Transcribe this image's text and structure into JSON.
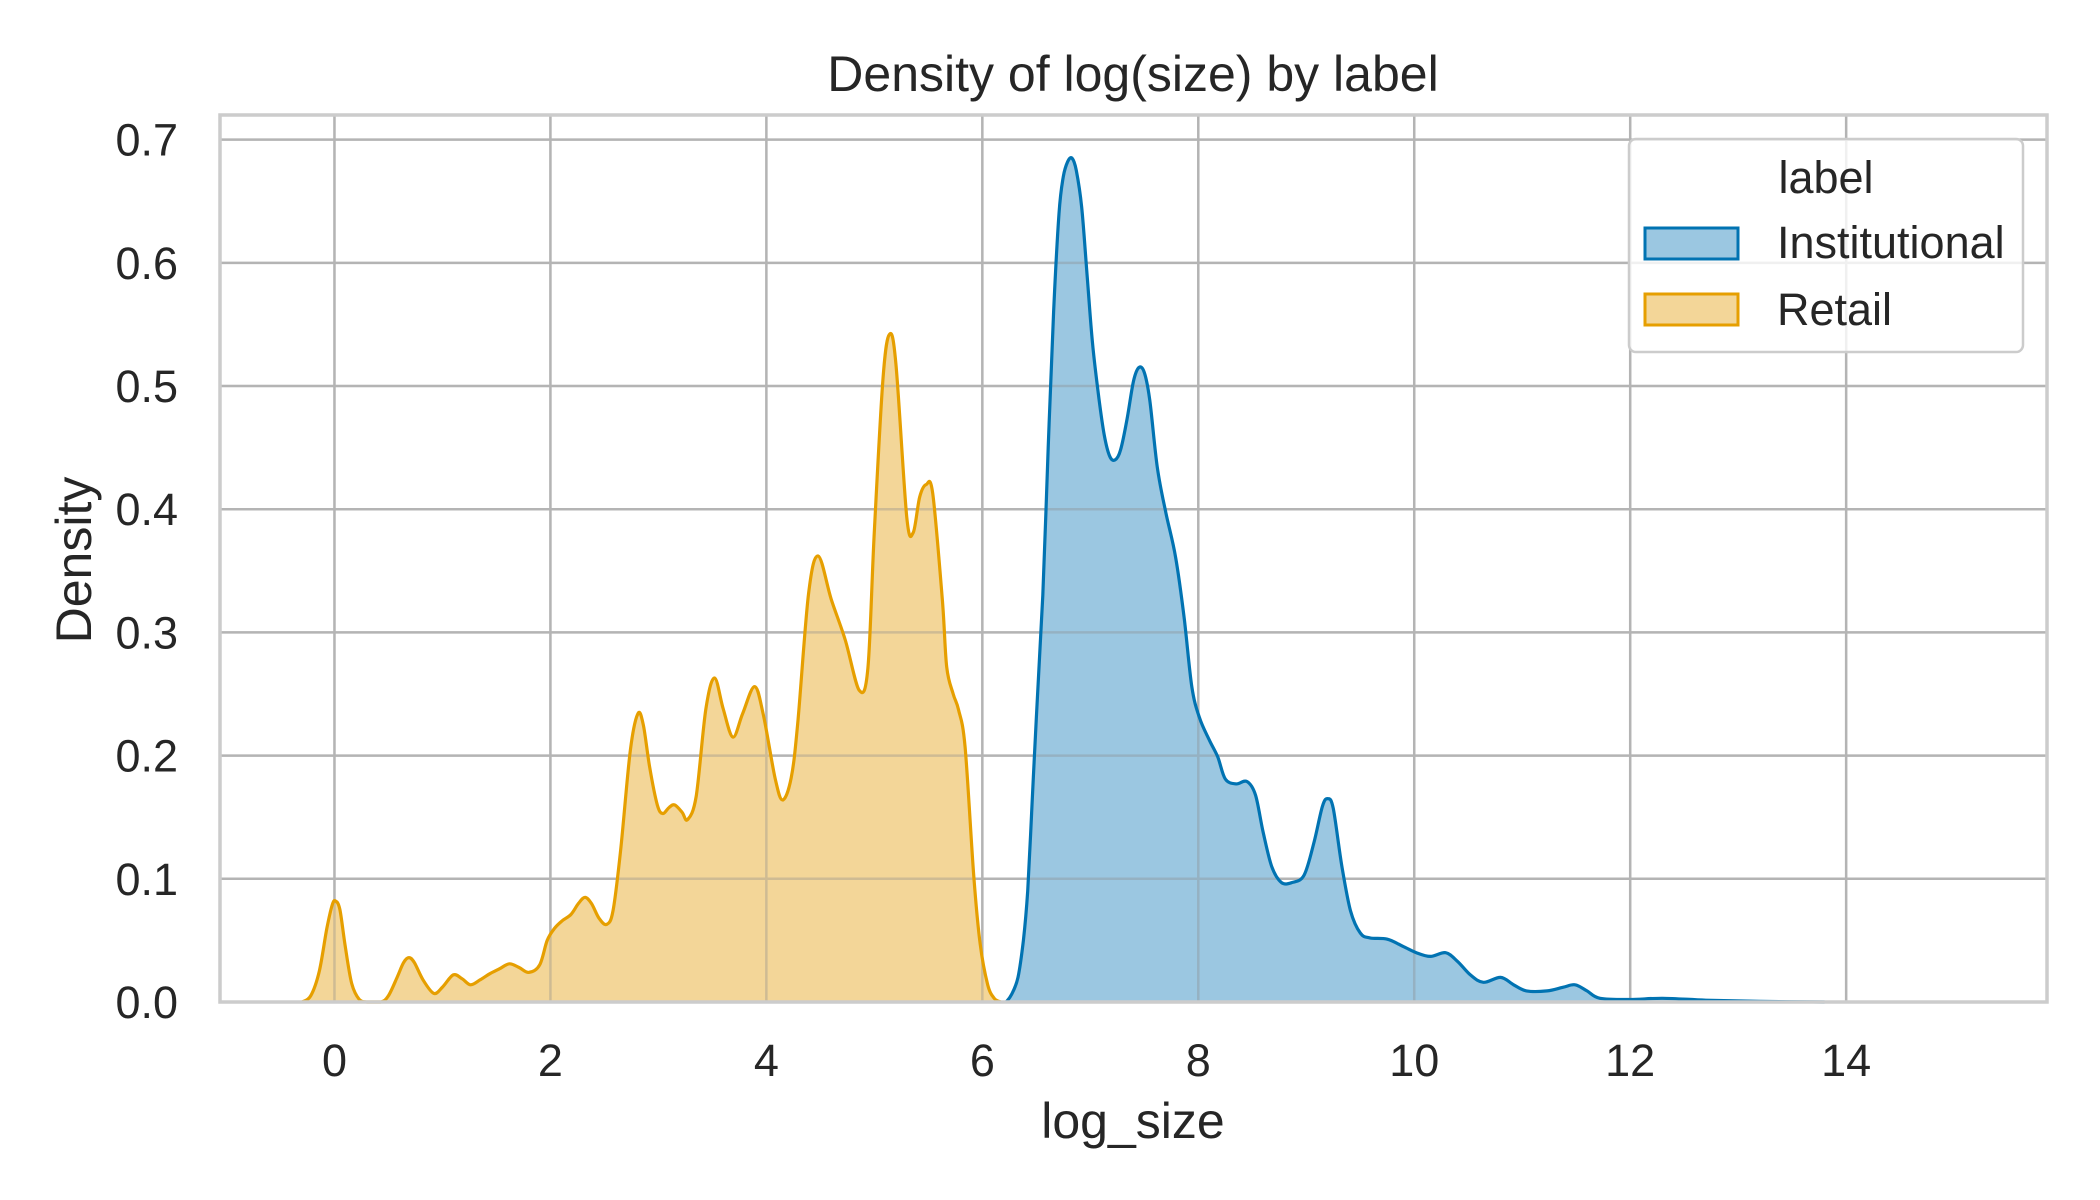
{
  "chart_data": {
    "type": "area",
    "title": "Density of log(size) by label",
    "xlabel": "log_size",
    "ylabel": "Density",
    "xlim": [
      -1.06,
      15.86
    ],
    "ylim": [
      0,
      0.72
    ],
    "xticks": [
      0,
      2,
      4,
      6,
      8,
      10,
      12,
      14
    ],
    "xtick_labels": [
      "0",
      "2",
      "4",
      "6",
      "8",
      "10",
      "12",
      "14"
    ],
    "yticks": [
      0.0,
      0.1,
      0.2,
      0.3,
      0.4,
      0.5,
      0.6,
      0.7
    ],
    "ytick_labels": [
      "0.0",
      "0.1",
      "0.2",
      "0.3",
      "0.4",
      "0.5",
      "0.6",
      "0.7"
    ],
    "grid": true,
    "legend": {
      "title": "label",
      "position": "upper right",
      "entries": [
        "Institutional",
        "Retail"
      ]
    },
    "series": [
      {
        "name": "Institutional",
        "line_color": "#0173B2",
        "fill_color": "#9BC7E1",
        "x": [
          6.22,
          6.27,
          6.33,
          6.38,
          6.42,
          6.46,
          6.5,
          6.56,
          6.61,
          6.66,
          6.71,
          6.75,
          6.79,
          6.83,
          6.87,
          6.92,
          6.97,
          7.02,
          7.08,
          7.13,
          7.18,
          7.23,
          7.28,
          7.34,
          7.4,
          7.45,
          7.5,
          7.55,
          7.62,
          7.7,
          7.79,
          7.87,
          7.94,
          8.01,
          8.1,
          8.18,
          8.25,
          8.35,
          8.45,
          8.53,
          8.6,
          8.68,
          8.77,
          8.87,
          8.98,
          9.07,
          9.15,
          9.2,
          9.25,
          9.33,
          9.41,
          9.5,
          9.59,
          9.75,
          9.9,
          10.02,
          10.15,
          10.29,
          10.4,
          10.52,
          10.64,
          10.8,
          10.92,
          11.04,
          11.23,
          11.38,
          11.49,
          11.6,
          11.72,
          12.0,
          12.3,
          12.7,
          13.2,
          13.8
        ],
        "values": [
          0.0,
          0.006,
          0.02,
          0.05,
          0.09,
          0.16,
          0.23,
          0.33,
          0.45,
          0.56,
          0.64,
          0.67,
          0.682,
          0.685,
          0.675,
          0.645,
          0.59,
          0.535,
          0.49,
          0.46,
          0.443,
          0.44,
          0.448,
          0.473,
          0.504,
          0.515,
          0.511,
          0.489,
          0.434,
          0.397,
          0.361,
          0.311,
          0.256,
          0.231,
          0.213,
          0.199,
          0.181,
          0.177,
          0.179,
          0.168,
          0.138,
          0.11,
          0.097,
          0.097,
          0.103,
          0.129,
          0.159,
          0.165,
          0.157,
          0.11,
          0.074,
          0.056,
          0.052,
          0.051,
          0.045,
          0.04,
          0.037,
          0.04,
          0.033,
          0.022,
          0.016,
          0.02,
          0.014,
          0.009,
          0.009,
          0.012,
          0.014,
          0.009,
          0.003,
          0.002,
          0.003,
          0.0015,
          0.0005,
          0.0
        ]
      },
      {
        "name": "Retail",
        "line_color": "#E69F00",
        "fill_color": "#F3D698",
        "x": [
          -0.3,
          -0.22,
          -0.14,
          -0.07,
          -0.02,
          0.01,
          0.05,
          0.1,
          0.16,
          0.23,
          0.3,
          0.43,
          0.5,
          0.58,
          0.64,
          0.69,
          0.74,
          0.82,
          0.92,
          1.0,
          1.1,
          1.18,
          1.26,
          1.35,
          1.44,
          1.53,
          1.62,
          1.71,
          1.8,
          1.9,
          1.97,
          2.04,
          2.11,
          2.19,
          2.26,
          2.32,
          2.38,
          2.45,
          2.52,
          2.58,
          2.65,
          2.74,
          2.81,
          2.86,
          2.92,
          2.99,
          3.04,
          3.1,
          3.15,
          3.22,
          3.27,
          3.35,
          3.44,
          3.52,
          3.6,
          3.69,
          3.78,
          3.89,
          3.97,
          4.08,
          4.15,
          4.23,
          4.29,
          4.39,
          4.48,
          4.6,
          4.73,
          4.86,
          4.94,
          5.0,
          5.08,
          5.14,
          5.2,
          5.3,
          5.36,
          5.42,
          5.48,
          5.54,
          5.63,
          5.67,
          5.73,
          5.78,
          5.84,
          5.92,
          5.98,
          6.05,
          6.11,
          6.17
        ],
        "values": [
          0.0,
          0.005,
          0.025,
          0.06,
          0.079,
          0.082,
          0.075,
          0.045,
          0.015,
          0.002,
          0.0,
          0.0,
          0.005,
          0.02,
          0.032,
          0.036,
          0.032,
          0.018,
          0.007,
          0.012,
          0.022,
          0.019,
          0.014,
          0.018,
          0.023,
          0.027,
          0.031,
          0.028,
          0.024,
          0.03,
          0.05,
          0.06,
          0.066,
          0.071,
          0.08,
          0.085,
          0.08,
          0.068,
          0.063,
          0.074,
          0.123,
          0.204,
          0.234,
          0.225,
          0.19,
          0.16,
          0.153,
          0.158,
          0.16,
          0.154,
          0.148,
          0.167,
          0.238,
          0.263,
          0.238,
          0.215,
          0.234,
          0.256,
          0.234,
          0.182,
          0.164,
          0.182,
          0.226,
          0.331,
          0.362,
          0.327,
          0.294,
          0.253,
          0.271,
          0.383,
          0.506,
          0.542,
          0.518,
          0.394,
          0.381,
          0.41,
          0.42,
          0.413,
          0.326,
          0.272,
          0.25,
          0.237,
          0.207,
          0.103,
          0.047,
          0.014,
          0.003,
          0.0
        ]
      }
    ]
  }
}
